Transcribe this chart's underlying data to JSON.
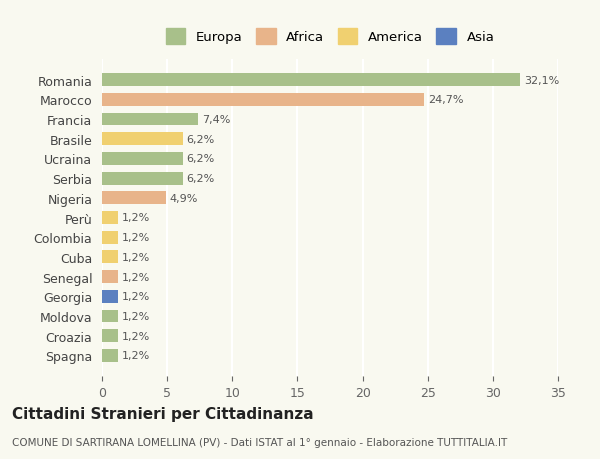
{
  "countries": [
    "Romania",
    "Marocco",
    "Francia",
    "Brasile",
    "Ucraina",
    "Serbia",
    "Nigeria",
    "Perù",
    "Colombia",
    "Cuba",
    "Senegal",
    "Georgia",
    "Moldova",
    "Croazia",
    "Spagna"
  ],
  "values": [
    32.1,
    24.7,
    7.4,
    6.2,
    6.2,
    6.2,
    4.9,
    1.2,
    1.2,
    1.2,
    1.2,
    1.2,
    1.2,
    1.2,
    1.2
  ],
  "labels": [
    "32,1%",
    "24,7%",
    "7,4%",
    "6,2%",
    "6,2%",
    "6,2%",
    "4,9%",
    "1,2%",
    "1,2%",
    "1,2%",
    "1,2%",
    "1,2%",
    "1,2%",
    "1,2%",
    "1,2%"
  ],
  "continents": [
    "Europa",
    "Africa",
    "Europa",
    "America",
    "Europa",
    "Europa",
    "Africa",
    "America",
    "America",
    "America",
    "Africa",
    "Asia",
    "Europa",
    "Europa",
    "Europa"
  ],
  "colors": {
    "Europa": "#a8c08a",
    "Africa": "#e8b48a",
    "America": "#f0d070",
    "Asia": "#5b80c0"
  },
  "legend_colors": {
    "Europa": "#a8c08a",
    "Africa": "#e8b48a",
    "America": "#f0d070",
    "Asia": "#5b80c0"
  },
  "xlim": [
    0,
    35
  ],
  "xticks": [
    0,
    5,
    10,
    15,
    20,
    25,
    30,
    35
  ],
  "title": "Cittadini Stranieri per Cittadinanza",
  "subtitle": "COMUNE DI SARTIRANA LOMELLINA (PV) - Dati ISTAT al 1° gennaio - Elaborazione TUTTITALIA.IT",
  "background_color": "#f9f9f0",
  "grid_color": "#ffffff"
}
